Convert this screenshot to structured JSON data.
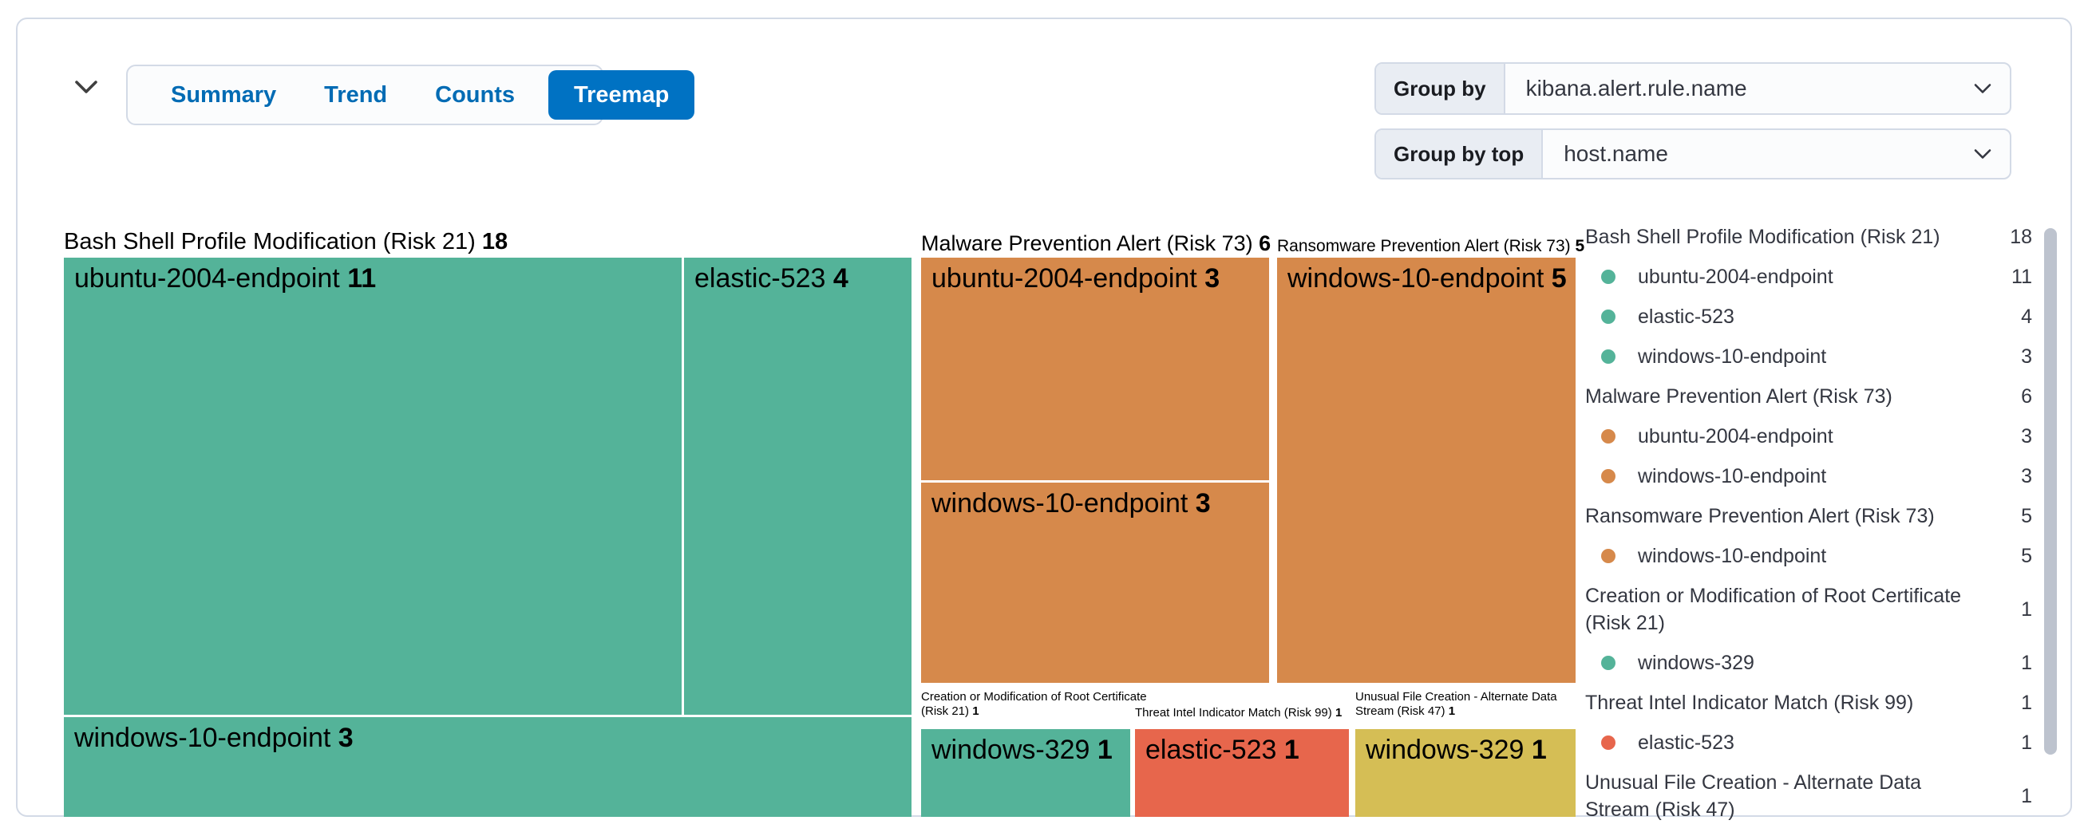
{
  "tabs": {
    "items": [
      "Summary",
      "Trend",
      "Counts",
      "Treemap"
    ],
    "selected": "Treemap"
  },
  "controls": {
    "group_by": {
      "label": "Group by",
      "value": "kibana.alert.rule.name"
    },
    "group_by_top": {
      "label": "Group by top",
      "value": "host.name"
    }
  },
  "colors": {
    "green": "#54B399",
    "orange": "#D6894B",
    "red": "#E7664C",
    "yellow": "#D5BE55",
    "accent_blue": "#0072C3",
    "link_blue": "#006BB4",
    "border": "#D3DAE6",
    "text": "#343741"
  },
  "chart_data": {
    "type": "treemap",
    "title": "Alerts grouped by kibana.alert.rule.name and host.name",
    "legend_position": "right",
    "groups": [
      {
        "name": "Bash Shell Profile Modification (Risk 21)",
        "value": 18,
        "color": "#54B399",
        "children": [
          {
            "name": "ubuntu-2004-endpoint",
            "value": 11
          },
          {
            "name": "elastic-523",
            "value": 4
          },
          {
            "name": "windows-10-endpoint",
            "value": 3
          }
        ]
      },
      {
        "name": "Malware Prevention Alert (Risk 73)",
        "value": 6,
        "color": "#D6894B",
        "children": [
          {
            "name": "ubuntu-2004-endpoint",
            "value": 3
          },
          {
            "name": "windows-10-endpoint",
            "value": 3
          }
        ]
      },
      {
        "name": "Ransomware Prevention Alert (Risk 73)",
        "value": 5,
        "color": "#D6894B",
        "children": [
          {
            "name": "windows-10-endpoint",
            "value": 5
          }
        ]
      },
      {
        "name": "Creation or Modification of Root Certificate (Risk 21)",
        "value": 1,
        "color": "#54B399",
        "children": [
          {
            "name": "windows-329",
            "value": 1
          }
        ]
      },
      {
        "name": "Threat Intel Indicator Match (Risk 99)",
        "value": 1,
        "color": "#E7664C",
        "children": [
          {
            "name": "elastic-523",
            "value": 1
          }
        ]
      },
      {
        "name": "Unusual File Creation - Alternate Data Stream (Risk 47)",
        "value": 1,
        "color": "#D5BE55",
        "children": [
          {
            "name": "windows-329",
            "value": 1
          }
        ]
      }
    ],
    "legend": [
      {
        "label": "Bash Shell Profile Modification (Risk 21)",
        "value": 18,
        "type": "group"
      },
      {
        "label": "ubuntu-2004-endpoint",
        "value": 11,
        "type": "host",
        "dot": "#54B399"
      },
      {
        "label": "elastic-523",
        "value": 4,
        "type": "host",
        "dot": "#54B399"
      },
      {
        "label": "windows-10-endpoint",
        "value": 3,
        "type": "host",
        "dot": "#54B399"
      },
      {
        "label": "Malware Prevention Alert (Risk 73)",
        "value": 6,
        "type": "group"
      },
      {
        "label": "ubuntu-2004-endpoint",
        "value": 3,
        "type": "host",
        "dot": "#D6894B"
      },
      {
        "label": "windows-10-endpoint",
        "value": 3,
        "type": "host",
        "dot": "#D6894B"
      },
      {
        "label": "Ransomware Prevention Alert (Risk 73)",
        "value": 5,
        "type": "group"
      },
      {
        "label": "windows-10-endpoint",
        "value": 5,
        "type": "host",
        "dot": "#D6894B"
      },
      {
        "label": "Creation or Modification of Root Certificate (Risk 21)",
        "value": 1,
        "type": "group",
        "lines": 2
      },
      {
        "label": "windows-329",
        "value": 1,
        "type": "host",
        "dot": "#54B399"
      },
      {
        "label": "Threat Intel Indicator Match (Risk 99)",
        "value": 1,
        "type": "group"
      },
      {
        "label": "elastic-523",
        "value": 1,
        "type": "host",
        "dot": "#E7664C"
      },
      {
        "label": "Unusual File Creation - Alternate Data Stream (Risk 47)",
        "value": 1,
        "type": "group",
        "lines": 2
      }
    ]
  }
}
